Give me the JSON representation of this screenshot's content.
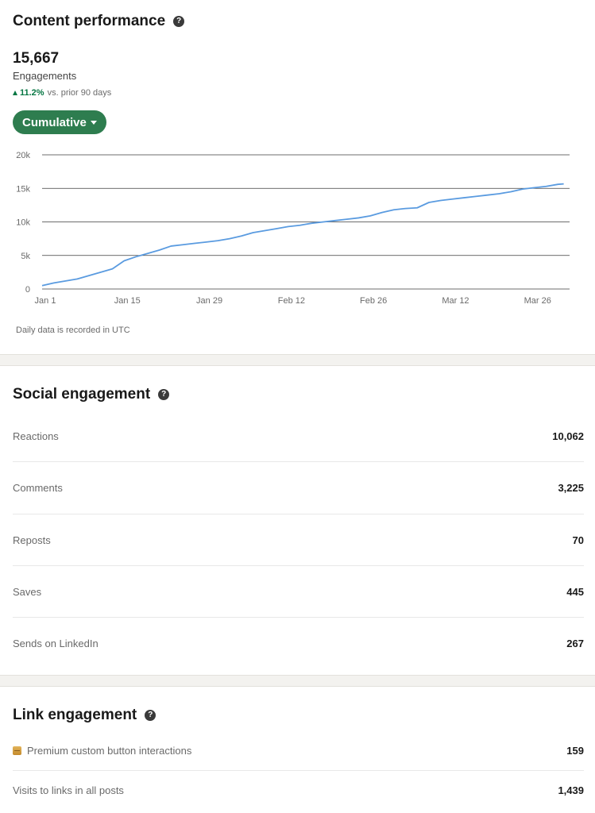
{
  "content_performance": {
    "title": "Content performance",
    "total": "15,667",
    "metric": "Engagements",
    "change_pct": "11.2%",
    "change_text": "vs. prior 90 days",
    "view_toggle": "Cumulative",
    "footnote": "Daily data is recorded in UTC"
  },
  "chart_data": {
    "type": "line",
    "title": "",
    "xlabel": "",
    "ylabel": "",
    "x_ticks": [
      "Jan 1",
      "Jan 15",
      "Jan 29",
      "Feb 12",
      "Feb 26",
      "Mar 12",
      "Mar 26"
    ],
    "y_ticks": [
      "0",
      "5k",
      "10k",
      "15k",
      "20k"
    ],
    "ylim": [
      0,
      20000
    ],
    "xlim": [
      0,
      90
    ],
    "grid": true,
    "line_color": "#5a9be0",
    "series": [
      {
        "x": [
          0,
          2,
          4,
          6,
          8,
          10,
          12,
          14,
          16,
          18,
          20,
          22,
          24,
          26,
          28,
          30,
          32,
          34,
          36,
          38,
          40,
          42,
          44,
          46,
          48,
          50,
          52,
          54,
          56,
          58,
          60,
          62,
          64,
          66,
          68,
          70,
          72,
          74,
          76,
          78,
          80,
          82,
          84,
          86,
          88,
          89
        ],
        "values": [
          500,
          900,
          1200,
          1500,
          2000,
          2500,
          3000,
          4200,
          4800,
          5300,
          5800,
          6400,
          6600,
          6800,
          7000,
          7200,
          7500,
          7900,
          8400,
          8700,
          9000,
          9300,
          9500,
          9800,
          10000,
          10200,
          10400,
          10600,
          10900,
          11400,
          11800,
          12000,
          12100,
          12900,
          13200,
          13400,
          13600,
          13800,
          14000,
          14200,
          14500,
          14900,
          15100,
          15300,
          15600,
          15667
        ]
      }
    ]
  },
  "social_engagement": {
    "title": "Social engagement",
    "rows": [
      {
        "label": "Reactions",
        "value": "10,062"
      },
      {
        "label": "Comments",
        "value": "3,225"
      },
      {
        "label": "Reposts",
        "value": "70"
      },
      {
        "label": "Saves",
        "value": "445"
      },
      {
        "label": "Sends on LinkedIn",
        "value": "267"
      }
    ]
  },
  "link_engagement": {
    "title": "Link engagement",
    "rows": [
      {
        "label": "Premium custom button interactions",
        "value": "159",
        "icon": "premium-icon"
      },
      {
        "label": "Visits to links in all posts",
        "value": "1,439"
      }
    ]
  },
  "colors": {
    "accent_green": "#2e7d4f",
    "trend_green": "#057642",
    "band": "#f3f2ef"
  }
}
